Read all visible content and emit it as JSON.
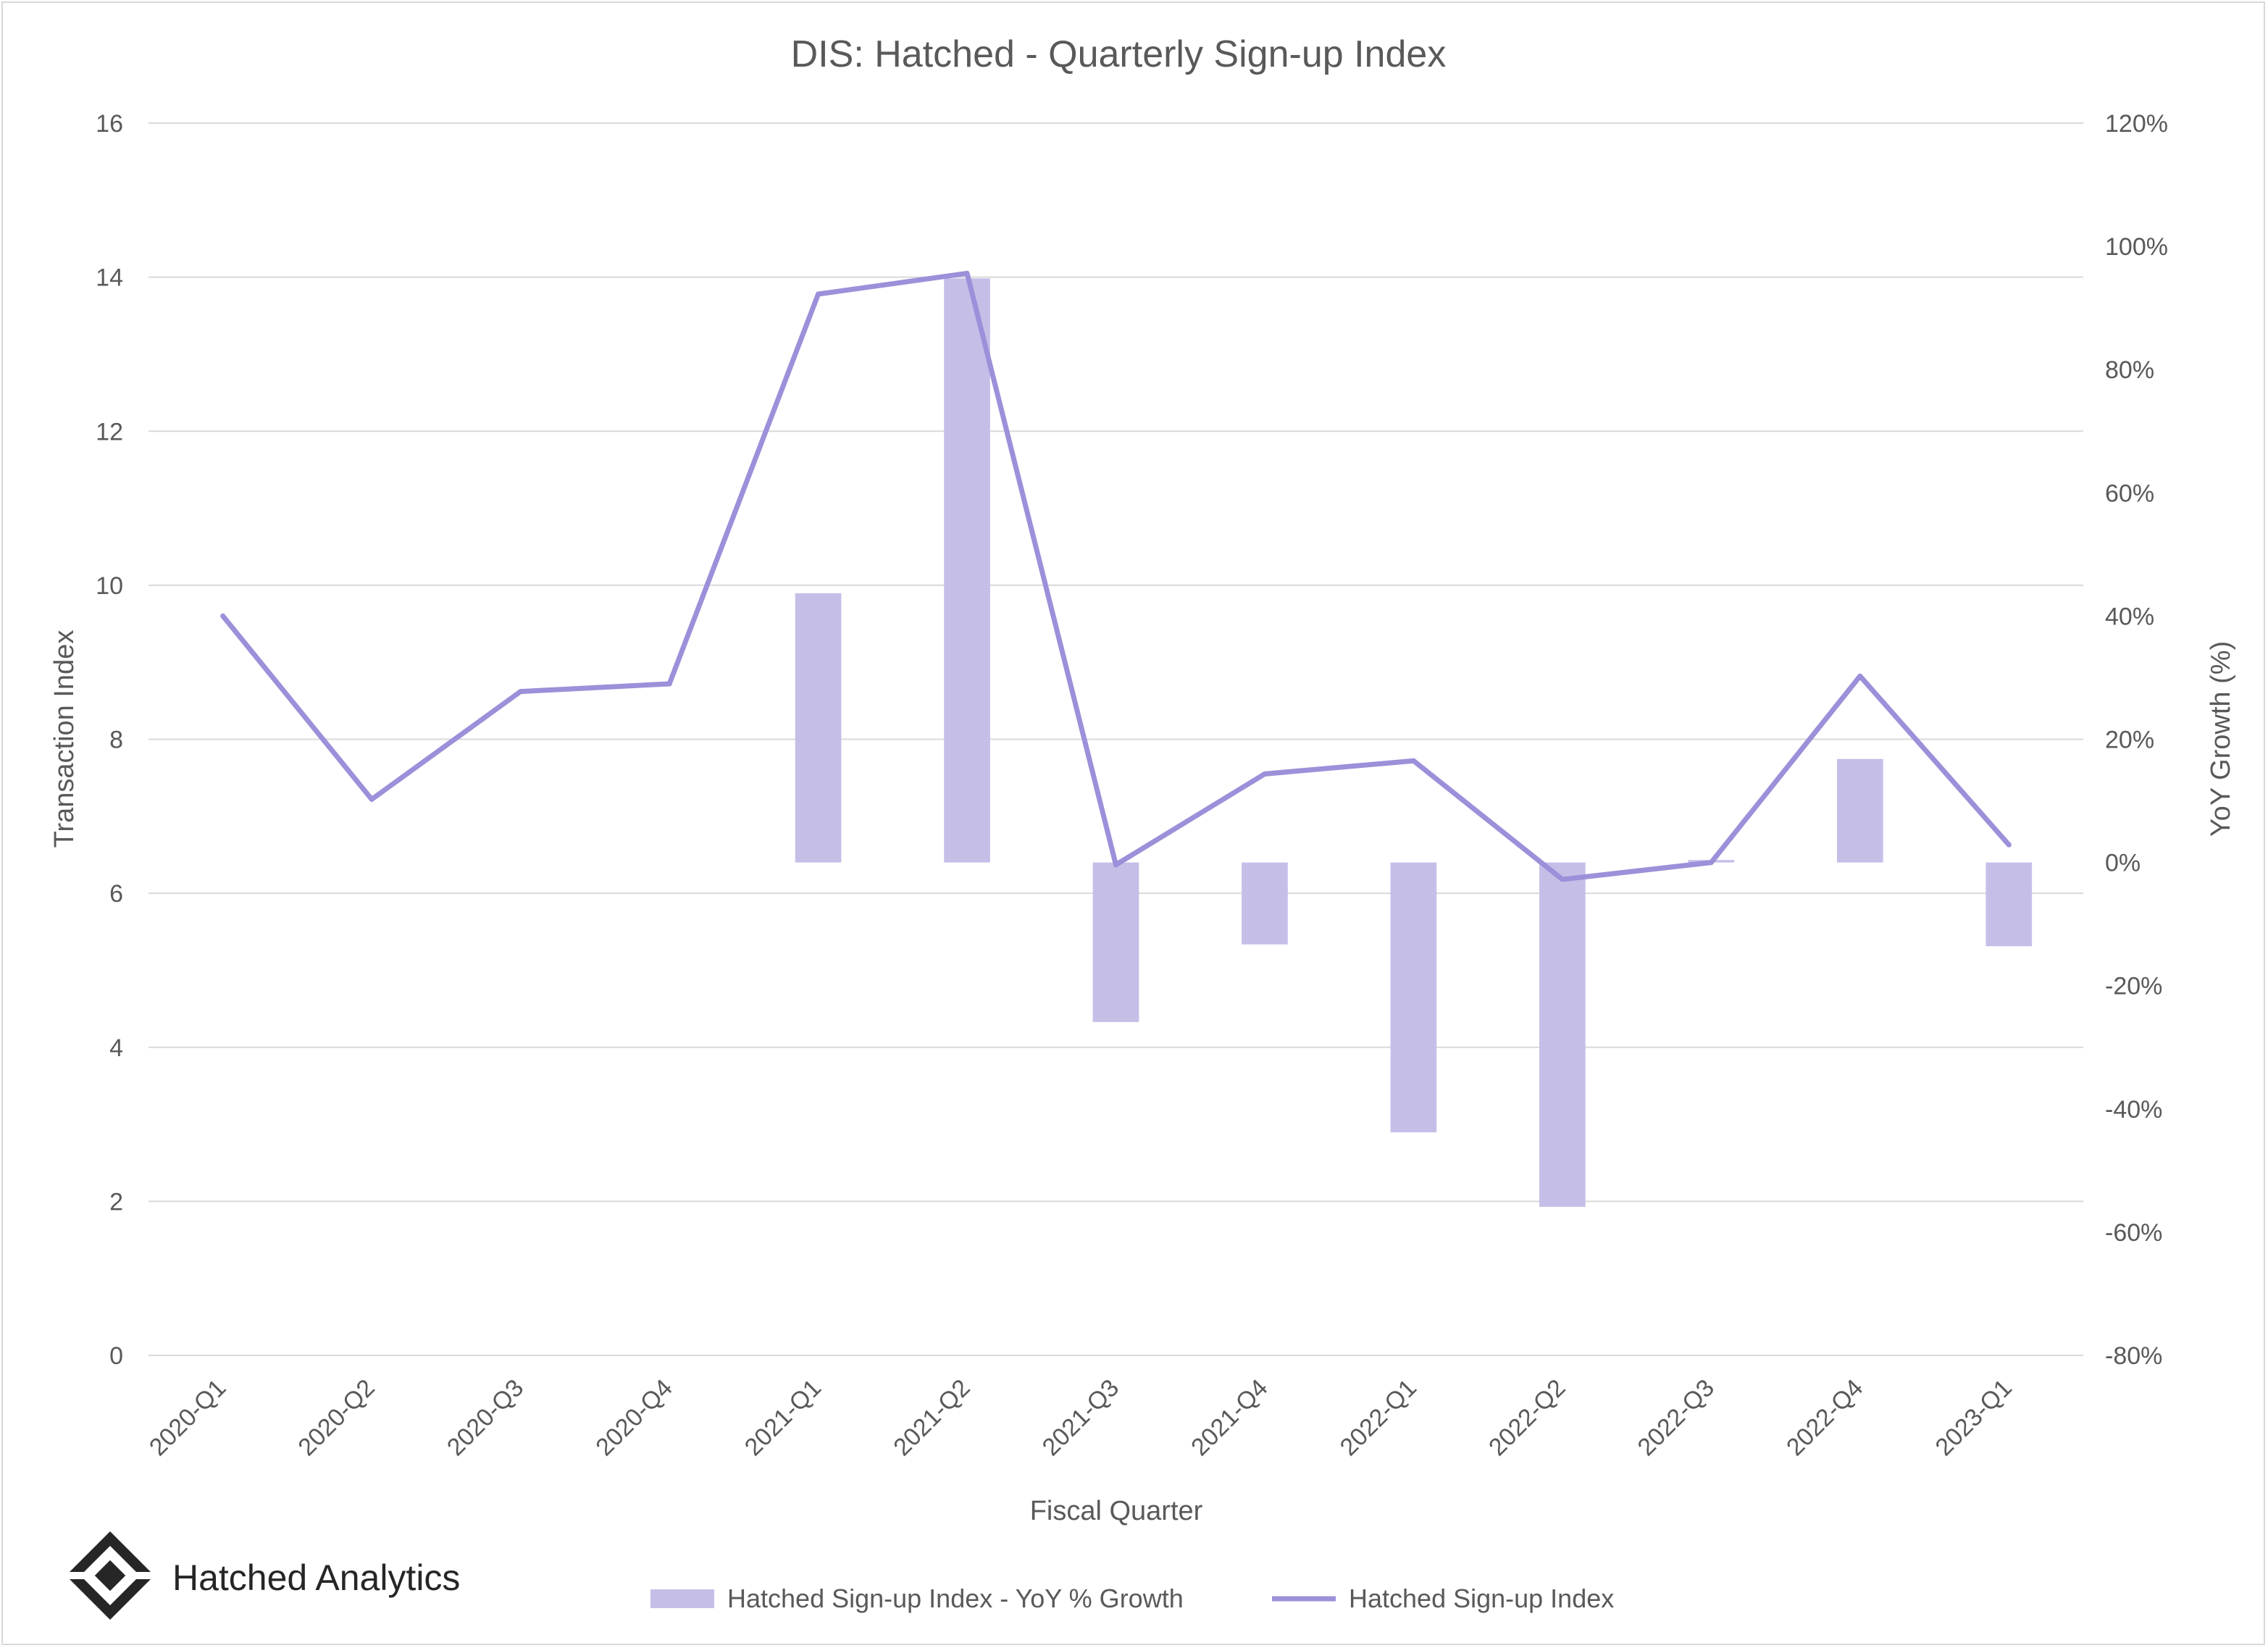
{
  "brand": {
    "name": "Hatched Analytics",
    "logo_icon": "hatched-logo-icon"
  },
  "colors": {
    "bar": "#c5bfe8",
    "line": "#9b90d9",
    "grid": "#d9d9d9",
    "text": "#595959"
  },
  "chart_data": {
    "type": "bar+line",
    "title": "DIS: Hatched - Quarterly Sign-up Index",
    "xlabel": "Fiscal Quarter",
    "ylabel_left": "Transaction Index",
    "ylabel_right": "YoY Growth (%)",
    "categories": [
      "2020-Q1",
      "2020-Q2",
      "2020-Q3",
      "2020-Q4",
      "2021-Q1",
      "2021-Q2",
      "2021-Q3",
      "2021-Q4",
      "2022-Q1",
      "2022-Q2",
      "2022-Q3",
      "2022-Q4",
      "2023-Q1"
    ],
    "ylim_left": [
      0,
      16
    ],
    "yticks_left": [
      0,
      2,
      4,
      6,
      8,
      10,
      12,
      14,
      16
    ],
    "yticks_left_labels": [
      "0",
      "2",
      "4",
      "6",
      "8",
      "10",
      "12",
      "14",
      "16"
    ],
    "ylim_right": [
      -80,
      120
    ],
    "yticks_right": [
      -80,
      -60,
      -40,
      -20,
      0,
      20,
      40,
      60,
      80,
      100,
      120
    ],
    "yticks_right_labels": [
      "-80%",
      "-60%",
      "-40%",
      "-20%",
      "0%",
      "20%",
      "40%",
      "60%",
      "80%",
      "100%",
      "120%"
    ],
    "grid": true,
    "legend_position": "bottom",
    "series": [
      {
        "name": "Hatched Sign-up Index - YoY % Growth",
        "type": "bar",
        "axis": "right",
        "values": [
          null,
          null,
          null,
          null,
          43.7,
          94.8,
          -25.9,
          -13.3,
          -43.8,
          -55.9,
          0.4,
          16.8,
          -13.6
        ]
      },
      {
        "name": "Hatched Sign-up Index",
        "type": "line",
        "axis": "left",
        "values": [
          9.6,
          7.22,
          8.62,
          8.72,
          13.78,
          14.05,
          6.37,
          7.55,
          7.72,
          6.18,
          6.4,
          8.82,
          6.63
        ]
      }
    ]
  }
}
